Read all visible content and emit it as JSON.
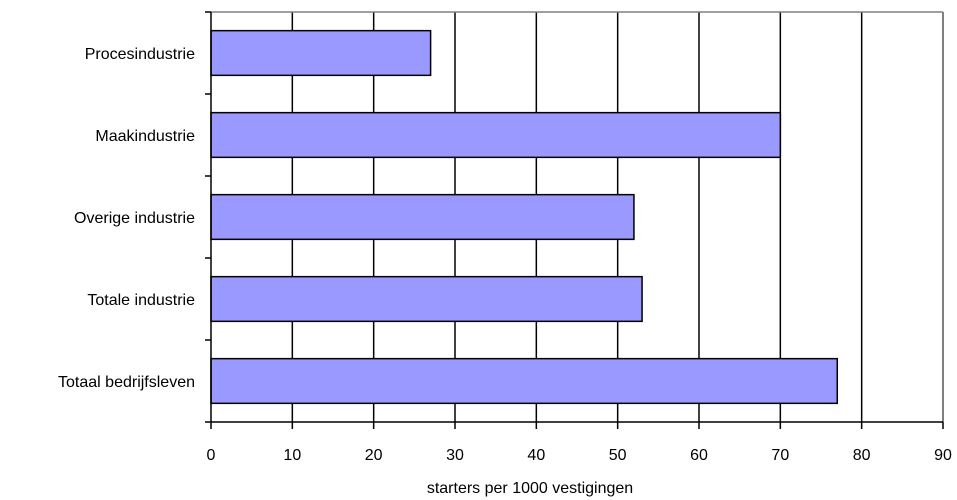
{
  "chart_data": {
    "type": "bar",
    "orientation": "horizontal",
    "categories": [
      "Procesindustrie",
      "Maakindustrie",
      "Overige industrie",
      "Totale industrie",
      "Totaal bedrijfsleven"
    ],
    "values": [
      27,
      70,
      52,
      53,
      77
    ],
    "xlabel": "starters per 1000 vestigingen",
    "ylabel": "",
    "xlim": [
      0,
      90
    ],
    "xticks": [
      "0",
      "10",
      "20",
      "30",
      "40",
      "50",
      "60",
      "70",
      "80",
      "90"
    ],
    "grid": "vertical",
    "legend": "none",
    "bar_color": "#9999ff"
  }
}
